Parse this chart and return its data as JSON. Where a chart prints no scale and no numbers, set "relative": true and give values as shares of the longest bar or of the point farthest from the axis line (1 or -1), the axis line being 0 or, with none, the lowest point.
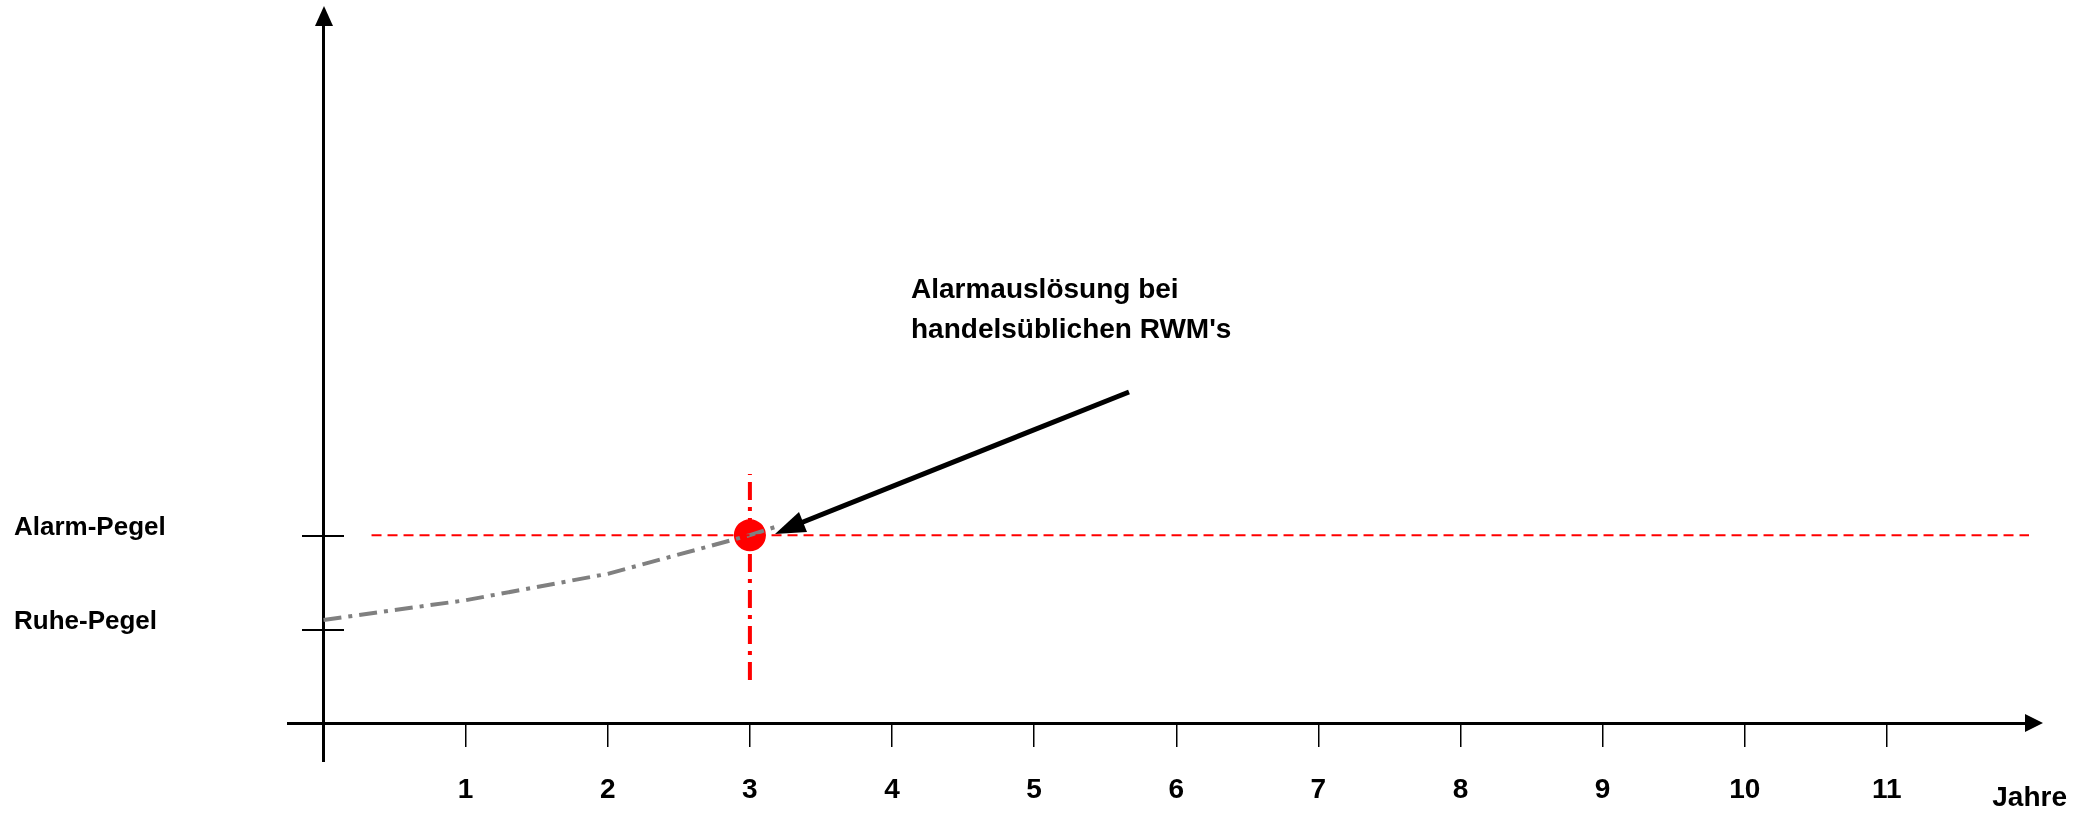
{
  "chart_data": {
    "type": "line",
    "xlabel": "Jahre",
    "xlim": [
      -0.25,
      12
    ],
    "xticks": [
      1,
      2,
      3,
      4,
      5,
      6,
      7,
      8,
      9,
      10,
      11
    ],
    "relative": true,
    "series": [
      {
        "color": "#808080",
        "line_style": "dashed",
        "marker": "none",
        "x": [
          0,
          1,
          2,
          3,
          3.2
        ],
        "values": [
          0.415,
          0.494,
          0.6,
          0.755,
          0.792
        ]
      },
      {
        "color": "#ff0000",
        "line_style": "dashed",
        "marker": "none",
        "x": [
          3,
          3
        ],
        "values": [
          0.174,
          1
        ]
      },
      {
        "type": "scatter",
        "color": "#ff0000",
        "marker": "circle",
        "x": [
          3
        ],
        "values": [
          0.755
        ]
      }
    ],
    "ref_lines": [
      {
        "axis": "y",
        "value": 0.755,
        "color": "#ff0000",
        "line_style": "dashed"
      }
    ],
    "annotations": [
      "Alarm-Pegel",
      "Ruhe-Pegel",
      "Alarmauslösung bei\nhandelsüblichen RWM's"
    ],
    "grid": false,
    "legend": false
  }
}
